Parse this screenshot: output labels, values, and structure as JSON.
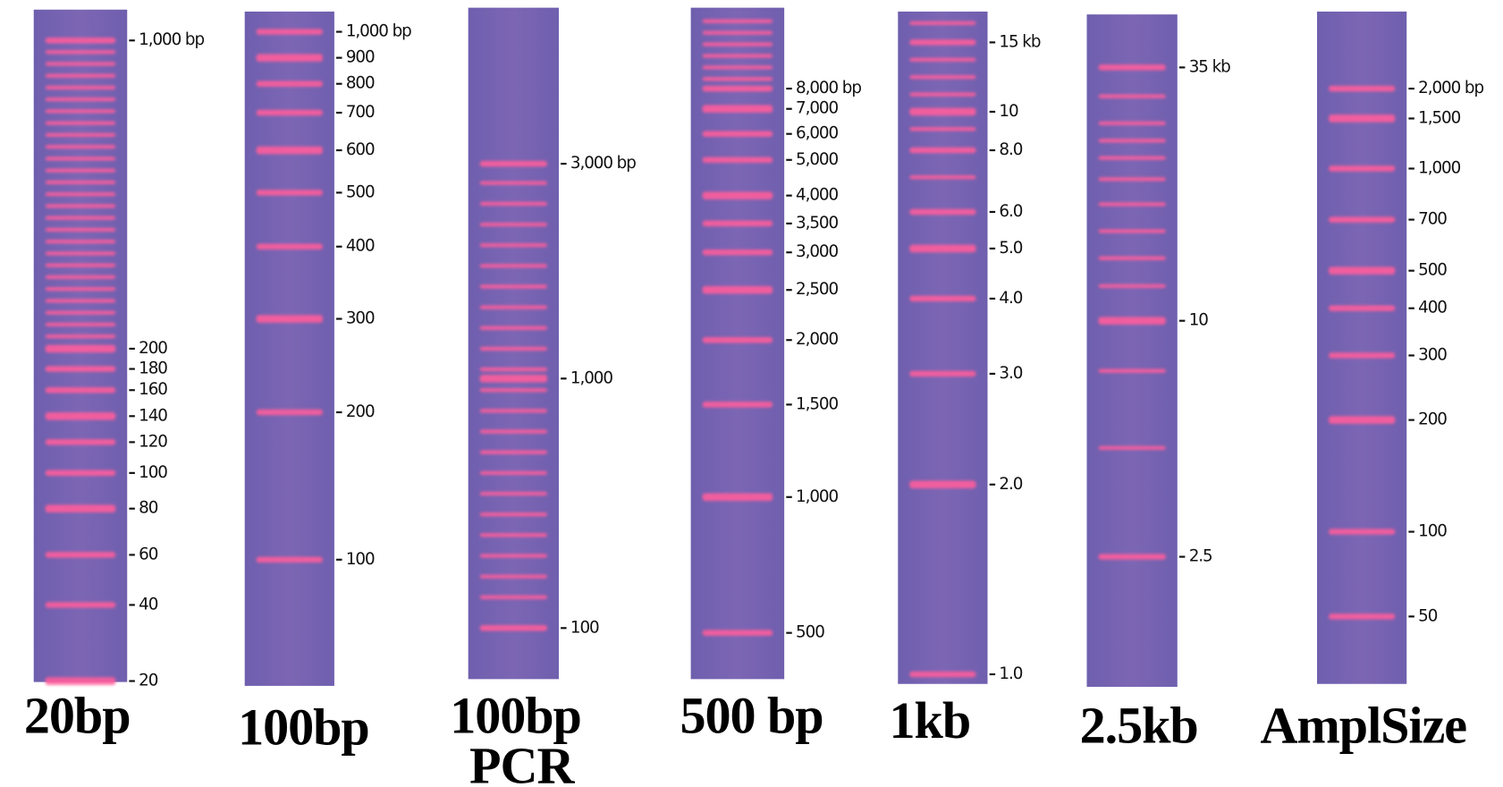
{
  "lanes": [
    {
      "title": "20bp",
      "labels": [
        "1,000 bp",
        "200",
        "180",
        "160",
        "140",
        "120",
        "100",
        "80",
        "60",
        "40",
        "20"
      ]
    },
    {
      "title": "100bp",
      "labels": [
        "1,000 bp",
        "900",
        "800",
        "700",
        "600",
        "500",
        "400",
        "300",
        "200",
        "100"
      ]
    },
    {
      "title": "100bp PCR",
      "labels": [
        "3,000 bp",
        "1,000",
        "100"
      ]
    },
    {
      "title": "500 bp",
      "labels": [
        "8,000 bp",
        "7,000",
        "6,000",
        "5,000",
        "4,000",
        "3,500",
        "3,000",
        "2,500",
        "2,000",
        "1,500",
        "1,000",
        "500"
      ]
    },
    {
      "title": "1kb",
      "labels": [
        "15 kb",
        "10",
        "8.0",
        "6.0",
        "5.0",
        "4.0",
        "3.0",
        "2.0",
        "1.0"
      ]
    },
    {
      "title": "2.5kb",
      "labels": [
        "35 kb",
        "10",
        "2.5"
      ]
    },
    {
      "title": "AmplSize",
      "labels": [
        "2,000 bp",
        "1,500",
        "1,000",
        "700",
        "500",
        "400",
        "300",
        "200",
        "100",
        "50"
      ]
    }
  ]
}
